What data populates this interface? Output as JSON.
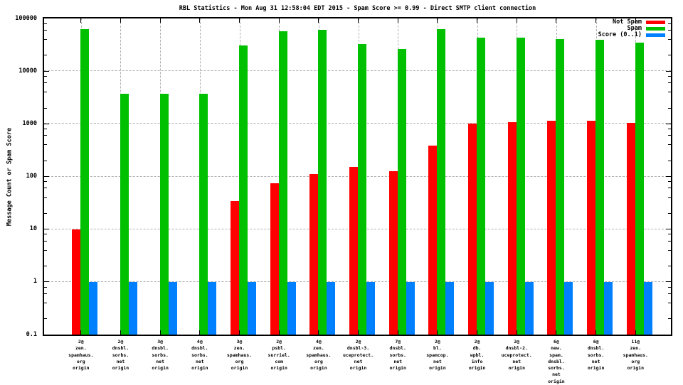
{
  "chart_data": {
    "type": "bar",
    "title": "RBL Statistics - Mon Aug 31 12:58:04 EDT 2015 - Spam Score >= 0.99 - Direct SMTP client connection",
    "ylabel": "Message Count or Spam Score",
    "xlabel": "",
    "yscale": "log",
    "ylim": [
      0.1,
      100000
    ],
    "ytick_labels": [
      "100000",
      "10000",
      "1000",
      "100",
      "10",
      "1",
      "0.1"
    ],
    "grid": true,
    "legend_position": "top-right-inside",
    "categories": [
      "2@\nzen.\nspamhaus.\norg\norigin",
      "2@\ndnsbl.\nsorbs.\nnet\norigin",
      "3@\ndnsbl.\nsorbs.\nnet\norigin",
      "4@\ndnsbl.\nsorbs.\nnet\norigin",
      "3@\nzen.\nspamhaus.\norg\norigin",
      "2@\npsbl.\nsurriel.\ncom\norigin",
      "4@\nzen.\nspamhaus.\norg\norigin",
      "2@\ndnsbl-3.\nuceprotect.\nnet\norigin",
      "7@\ndnsbl.\nsorbs.\nnet\norigin",
      "2@\nbl.\nspamcop.\nnet\norigin",
      "2@\ndb.\nwpbl.\ninfo\norigin",
      "2@\ndnsbl-2.\nuceprotect.\nnet\norigin",
      "6@\nnew.\nspam.\ndnsbl.\nsorbs.\nnet\norigin",
      "6@\ndnsbl.\nsorbs.\nnet\norigin",
      "11@\nzen.\nspamhaus.\norg\norigin"
    ],
    "series": [
      {
        "name": "Not Spam",
        "color": "#ff0000",
        "values": [
          10,
          0,
          0,
          0,
          34,
          74,
          110,
          152,
          125,
          385,
          1000,
          1080,
          1150,
          1150,
          1050
        ]
      },
      {
        "name": "Spam",
        "color": "#00c000",
        "values": [
          63000,
          3700,
          3700,
          3700,
          31000,
          57000,
          60000,
          33000,
          26000,
          62000,
          43000,
          43000,
          41000,
          40000,
          35000
        ]
      },
      {
        "name": "Score (0..1)",
        "color": "#0080ff",
        "values": [
          1,
          1,
          1,
          1,
          1,
          1,
          1,
          1,
          1,
          1,
          1,
          1,
          1,
          1,
          1
        ]
      }
    ],
    "minor_tick_multiples": [
      2,
      4,
      6,
      8
    ]
  }
}
